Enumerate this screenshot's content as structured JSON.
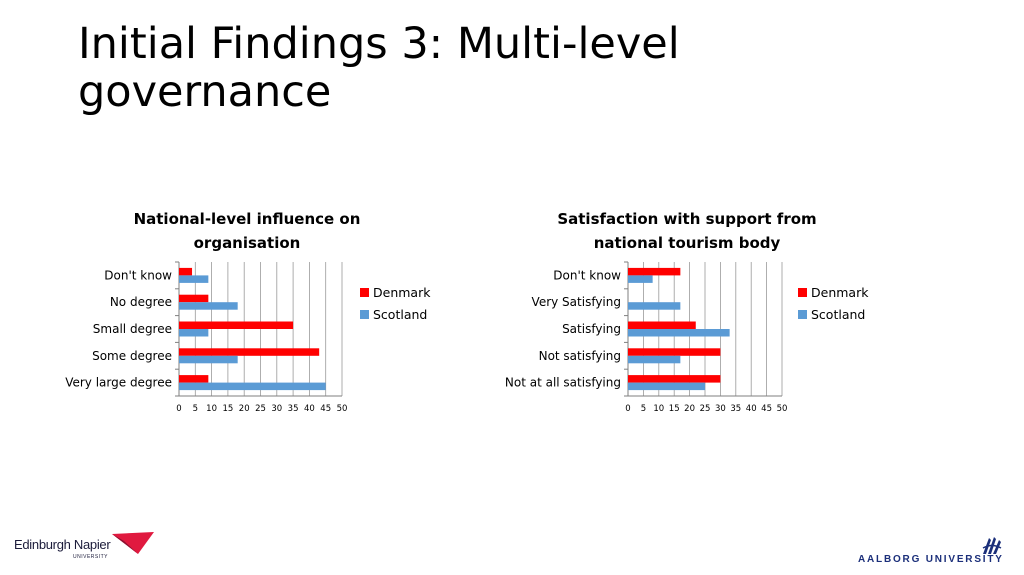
{
  "slide": {
    "title": "Initial Findings 3: Multi-level governance"
  },
  "colors": {
    "denmark": "#ff0000",
    "scotland": "#5b9bd5",
    "grid": "#9a9a9a",
    "axis": "#7f7f7f"
  },
  "logos": {
    "left": {
      "name": "Edinburgh Napier",
      "sub": "UNIVERSITY"
    },
    "right": {
      "name": "AALBORG UNIVERSITY"
    }
  },
  "chart_data": [
    {
      "type": "bar",
      "orientation": "horizontal",
      "title": "National-level influence on organisation",
      "title_lines": [
        "National-level influence on",
        "organisation"
      ],
      "categories": [
        "Very large degree",
        "Some degree",
        "Small degree",
        "No degree",
        "Don't know"
      ],
      "series": [
        {
          "name": "Denmark",
          "values": [
            9,
            43,
            35,
            9,
            4
          ]
        },
        {
          "name": "Scotland",
          "values": [
            45,
            18,
            9,
            18,
            9
          ]
        }
      ],
      "xlim": [
        0,
        50
      ],
      "xticks": [
        0,
        5,
        10,
        15,
        20,
        25,
        30,
        35,
        40,
        45,
        50
      ],
      "grid": true,
      "legend": "right"
    },
    {
      "type": "bar",
      "orientation": "horizontal",
      "title": "Satisfaction with support from national tourism body",
      "title_lines": [
        "Satisfaction with support from",
        "national tourism body"
      ],
      "categories": [
        "Not at all satisfying",
        "Not satisfying",
        "Satisfying",
        "Very Satisfying",
        "Don't know"
      ],
      "series": [
        {
          "name": "Denmark",
          "values": [
            30,
            30,
            22,
            0,
            17
          ]
        },
        {
          "name": "Scotland",
          "values": [
            25,
            17,
            33,
            17,
            8
          ]
        }
      ],
      "xlim": [
        0,
        50
      ],
      "xticks": [
        0,
        5,
        10,
        15,
        20,
        25,
        30,
        35,
        40,
        45,
        50
      ],
      "grid": true,
      "legend": "right"
    }
  ]
}
